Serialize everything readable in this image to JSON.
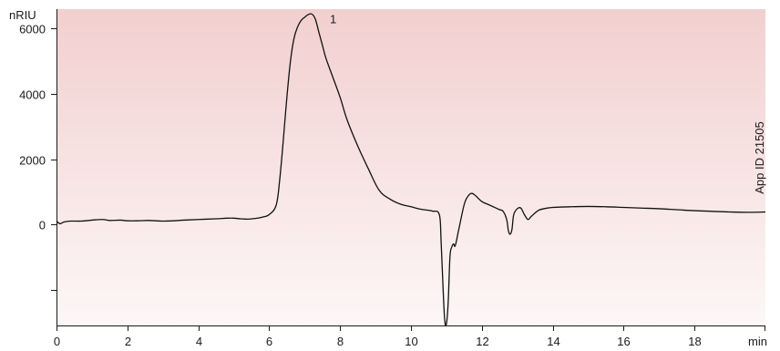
{
  "chart_data": {
    "type": "line",
    "ylabel": "nRIU",
    "xlabel": "min",
    "app_id": "App ID 21505",
    "xlim": [
      0,
      20
    ],
    "ylim": [
      -3100,
      6600
    ],
    "x_ticks": [
      0,
      2,
      4,
      6,
      8,
      10,
      12,
      14,
      16,
      18
    ],
    "y_ticks": [
      -2000,
      0,
      2000,
      4000,
      6000
    ],
    "y_tick_labels": [
      "",
      "0",
      "2000",
      "4000",
      "6000"
    ],
    "background_gradient": [
      "#f2cfcf",
      "#fdf7f7"
    ],
    "peaks": [
      {
        "label": "1",
        "x": 7.25,
        "y": 6450
      }
    ],
    "series": [
      {
        "x": [
          0,
          0.1,
          0.2,
          0.4,
          0.7,
          1.0,
          1.3,
          1.5,
          1.8,
          2.0,
          2.3,
          2.6,
          3.0,
          3.3,
          3.6,
          4.0,
          4.5,
          4.8,
          5.0,
          5.2,
          5.4,
          5.6,
          5.8,
          6.0,
          6.2,
          6.3,
          6.4,
          6.5,
          6.6,
          6.7,
          6.8,
          6.9,
          7.0,
          7.1,
          7.2,
          7.3,
          7.4,
          7.5,
          7.6,
          7.8,
          8.0,
          8.2,
          8.5,
          8.8,
          9.1,
          9.4,
          9.7,
          10.0,
          10.3,
          10.6,
          10.8,
          10.85,
          10.9,
          10.95,
          11.0,
          11.05,
          11.1,
          11.15,
          11.2,
          11.25,
          11.35,
          11.5,
          11.6,
          11.7,
          11.8,
          12.0,
          12.2,
          12.4,
          12.5,
          12.6,
          12.7,
          12.75,
          12.8,
          12.85,
          12.9,
          13.0,
          13.1,
          13.2,
          13.3,
          13.4,
          13.6,
          13.8,
          14.0,
          14.5,
          15.0,
          15.5,
          16.0,
          16.5,
          17.0,
          17.5,
          18.0,
          18.5,
          19.0,
          19.5,
          20.0
        ],
        "y": [
          100,
          20,
          70,
          100,
          100,
          130,
          150,
          120,
          130,
          110,
          110,
          120,
          100,
          110,
          130,
          150,
          170,
          190,
          190,
          170,
          160,
          180,
          220,
          300,
          600,
          1400,
          2600,
          3900,
          5000,
          5700,
          6050,
          6250,
          6350,
          6430,
          6450,
          6300,
          5900,
          5500,
          5100,
          4500,
          3900,
          3200,
          2400,
          1700,
          1050,
          780,
          620,
          540,
          460,
          410,
          300,
          -500,
          -1800,
          -2900,
          -3050,
          -2400,
          -1000,
          -700,
          -600,
          -650,
          -150,
          600,
          850,
          950,
          900,
          700,
          600,
          500,
          450,
          400,
          150,
          -200,
          -300,
          -150,
          300,
          480,
          500,
          300,
          150,
          250,
          430,
          490,
          520,
          540,
          550,
          540,
          520,
          500,
          480,
          450,
          420,
          400,
          380,
          370,
          380
        ]
      }
    ]
  }
}
